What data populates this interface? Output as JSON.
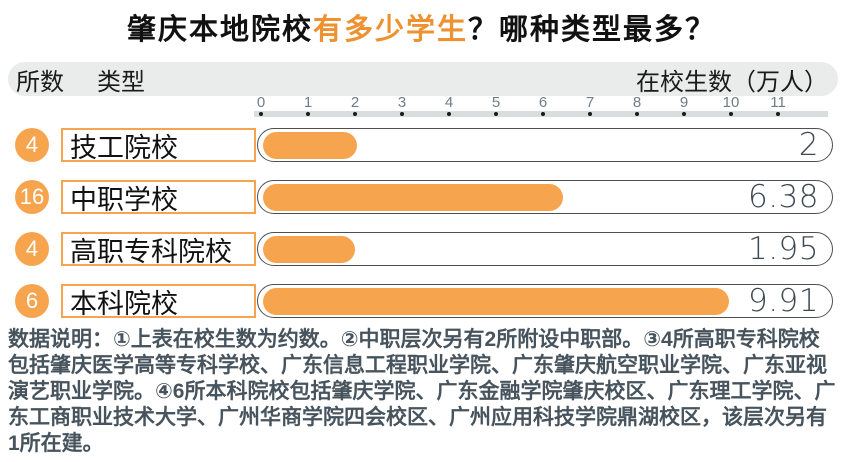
{
  "title": {
    "prefix": "肇庆本地院校",
    "highlight": "有多少学生",
    "suffix": "？哪种类型最多？"
  },
  "header": {
    "col_count": "所数",
    "col_type": "类型",
    "col_value": "在校生数（万人）"
  },
  "chart_data": {
    "type": "bar",
    "orientation": "horizontal",
    "title": "肇庆本地院校有多少学生？哪种类型最多？",
    "value_unit": "万人",
    "xlim": [
      0,
      11
    ],
    "axis_ticks": [
      "0",
      "1",
      "2",
      "3",
      "4",
      "5",
      "6",
      "7",
      "8",
      "9",
      "10",
      "11"
    ],
    "grid": false,
    "bar_color": "#F7A44E",
    "rows": [
      {
        "count": "4",
        "type": "技工院校",
        "value": 2,
        "value_label": "2"
      },
      {
        "count": "16",
        "type": "中职学校",
        "value": 6.38,
        "value_label": "6.38"
      },
      {
        "count": "4",
        "type": "高职专科院校",
        "value": 1.95,
        "value_label": "1.95"
      },
      {
        "count": "6",
        "type": "本科院校",
        "value": 9.91,
        "value_label": "9.91"
      }
    ]
  },
  "footnote": "数据说明：①上表在校生数为约数。②中职层次另有2所附设中职部。③4所高职专科院校包括肇庆医学高等专科学校、广东信息工程职业学院、广东肇庆航空职业学院、广东亚视演艺职业学院。④6所本科院校包括肇庆学院、广东金融学院肇庆校区、广东理工学院、广东工商职业技术大学、广州华商学院四会校区、广州应用科技学院鼎湖校区，该层次另有1所在建。",
  "colors": {
    "bar_orange": "#F7A44E",
    "title_highlight_orange": "#EE9130",
    "header_background": "#E9ECEB",
    "axis_ruler": "#D9DDDD",
    "axis_text": "#6D7E86",
    "footnote_text": "#47545E",
    "pill_border": "#4F4F4F",
    "value_text": "#3E4A52"
  }
}
